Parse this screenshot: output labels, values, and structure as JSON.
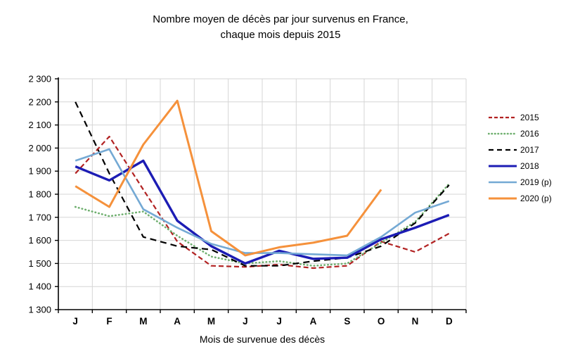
{
  "chart_data": {
    "type": "line",
    "title": "Nombre moyen de décès par jour survenus en France, chaque mois depuis 2015",
    "title_lines": [
      "Nombre moyen de décès par jour survenus en France,",
      "chaque mois depuis 2015"
    ],
    "xlabel": "Mois de survenue des décès",
    "ylabel": "",
    "ylim": [
      1300,
      2300
    ],
    "ytick_step": 100,
    "grid": true,
    "legend_position": "right",
    "categories": [
      "J",
      "F",
      "M",
      "A",
      "M",
      "J",
      "J",
      "A",
      "S",
      "O",
      "N",
      "D"
    ],
    "series": [
      {
        "name": "2015",
        "color": "#B22222",
        "style": "dashed",
        "width": 2.2,
        "values": [
          1890,
          2050,
          1820,
          1595,
          1490,
          1485,
          1495,
          1480,
          1490,
          1595,
          1550,
          1630
        ]
      },
      {
        "name": "2016",
        "color": "#6FAF6F",
        "style": "dotted",
        "width": 2.6,
        "values": [
          1745,
          1705,
          1725,
          1620,
          1530,
          1500,
          1510,
          1490,
          1500,
          1590,
          1680,
          1845
        ]
      },
      {
        "name": "2017",
        "color": "#000000",
        "style": "longdash",
        "width": 2.2,
        "values": [
          2200,
          1890,
          1615,
          1575,
          1560,
          1490,
          1490,
          1510,
          1525,
          1575,
          1675,
          1840
        ]
      },
      {
        "name": "2018",
        "color": "#1C1CB4",
        "style": "solid",
        "width": 3.4,
        "values": [
          1920,
          1860,
          1945,
          1685,
          1575,
          1500,
          1555,
          1520,
          1525,
          1605,
          1655,
          1710
        ]
      },
      {
        "name": "2019 (p)",
        "color": "#74A9D4",
        "style": "solid",
        "width": 2.6,
        "values": [
          1945,
          1995,
          1735,
          1655,
          1585,
          1545,
          1545,
          1540,
          1535,
          1615,
          1720,
          1770
        ]
      },
      {
        "name": "2020 (p)",
        "color": "#F5913B",
        "style": "solid",
        "width": 3.0,
        "values": [
          1835,
          1745,
          2015,
          2205,
          1640,
          1535,
          1570,
          1590,
          1620,
          1820,
          null,
          null
        ]
      }
    ],
    "colors": {
      "grid": "#D6D6D6",
      "axis": "#000000"
    }
  }
}
